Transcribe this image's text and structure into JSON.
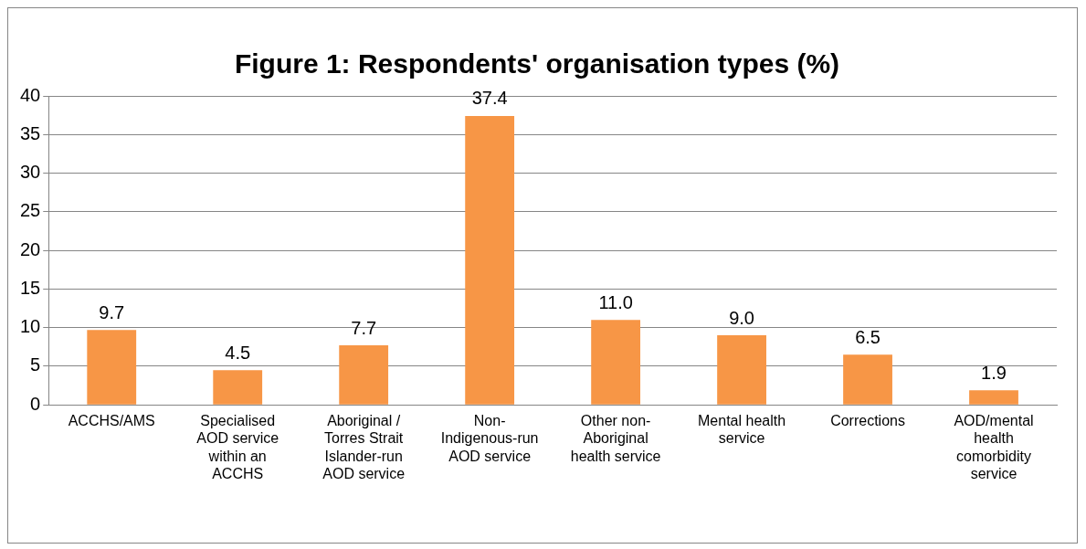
{
  "chart_data": {
    "type": "bar",
    "title": "Figure 1: Respondents' organisation types (%)",
    "categories": [
      "ACCHS/AMS",
      "Specialised AOD service within an ACCHS",
      "Aboriginal / Torres Strait Islander-run AOD service",
      "Non-Indigenous-run AOD service",
      "Other non-Aboriginal health service",
      "Mental health service",
      "Corrections",
      "AOD/mental health comorbidity service"
    ],
    "values": [
      9.7,
      4.5,
      7.7,
      37.4,
      11.0,
      9.0,
      6.5,
      1.9
    ],
    "value_labels": [
      "9.7",
      "4.5",
      "7.7",
      "37.4",
      "11.0",
      "9.0",
      "6.5",
      "1.9"
    ],
    "color": "#f79646",
    "ylim": [
      0,
      40
    ],
    "yticks": [
      0,
      5,
      10,
      15,
      20,
      25,
      30,
      35,
      40
    ],
    "grid": "y",
    "legend": false
  }
}
